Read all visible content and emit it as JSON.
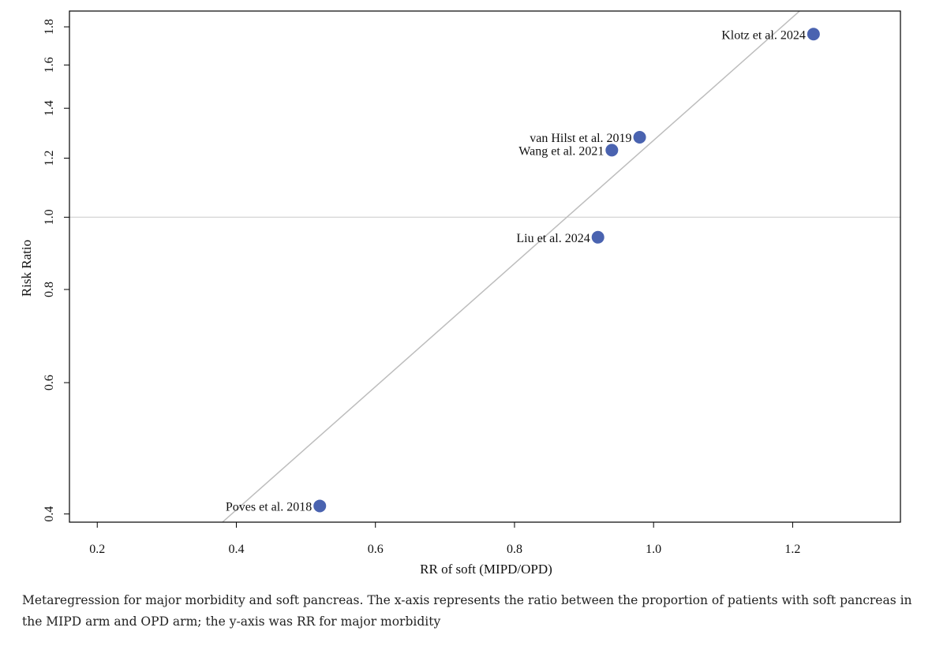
{
  "chart_data": {
    "type": "scatter",
    "title": "",
    "xlabel": "RR of soft (MIPD/OPD)",
    "ylabel": "Risk Ratio",
    "xlim": [
      0.16,
      1.355
    ],
    "ylim": [
      0.39,
      1.89
    ],
    "y_scale": "log",
    "x_ticks": [
      "0.2",
      "0.4",
      "0.6",
      "0.8",
      "1.0",
      "1.2"
    ],
    "y_ticks": [
      "0.4",
      "0.6",
      "0.8",
      "1.0",
      "1.2",
      "1.4",
      "1.6",
      "1.8"
    ],
    "reference_line_y": 1.0,
    "regression_line": {
      "x": [
        0.38,
        1.21
      ],
      "y": [
        0.39,
        1.89
      ]
    },
    "point_color": "#4a63b0",
    "points": [
      {
        "label": "Klotz et al. 2024",
        "x": 1.23,
        "y": 1.76
      },
      {
        "label": "van Hilst et al. 2019",
        "x": 0.98,
        "y": 1.28
      },
      {
        "label": "Wang et al. 2021",
        "x": 0.94,
        "y": 1.23
      },
      {
        "label": "Liu et al. 2024",
        "x": 0.92,
        "y": 0.94
      },
      {
        "label": "Poves et al. 2018",
        "x": 0.52,
        "y": 0.41
      }
    ]
  },
  "caption": "Metaregression for major morbidity and soft pancreas. The x-axis represents the ratio between the proportion of patients with soft pancreas in the MIPD arm and OPD arm; the y-axis was RR for major morbidity"
}
